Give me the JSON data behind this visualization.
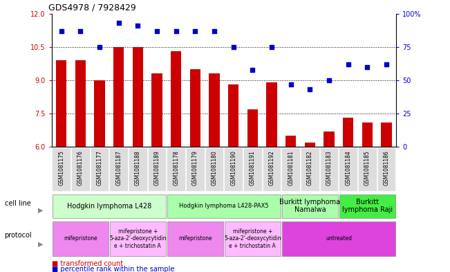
{
  "title": "GDS4978 / 7928429",
  "samples": [
    "GSM1081175",
    "GSM1081176",
    "GSM1081177",
    "GSM1081187",
    "GSM1081188",
    "GSM1081189",
    "GSM1081178",
    "GSM1081179",
    "GSM1081180",
    "GSM1081190",
    "GSM1081191",
    "GSM1081192",
    "GSM1081181",
    "GSM1081182",
    "GSM1081183",
    "GSM1081184",
    "GSM1081185",
    "GSM1081186"
  ],
  "bar_values": [
    9.9,
    9.9,
    9.0,
    10.5,
    10.5,
    9.3,
    10.3,
    9.5,
    9.3,
    8.8,
    7.7,
    8.9,
    6.5,
    6.2,
    6.7,
    7.3,
    7.1,
    7.1
  ],
  "dot_values": [
    87,
    87,
    75,
    93,
    91,
    87,
    87,
    87,
    87,
    75,
    58,
    75,
    47,
    43,
    50,
    62,
    60,
    62
  ],
  "ylim_left": [
    6,
    12
  ],
  "ylim_right": [
    0,
    100
  ],
  "yticks_left": [
    6,
    7.5,
    9,
    10.5,
    12
  ],
  "yticks_right": [
    0,
    25,
    50,
    75,
    100
  ],
  "bar_color": "#cc0000",
  "dot_color": "#0000cc",
  "bar_width": 0.55,
  "cell_line_groups": [
    {
      "label": "Hodgkin lymphoma L428",
      "start": 0,
      "end": 5,
      "color": "#ccffcc"
    },
    {
      "label": "Hodgkin lymphoma L428-PAX5",
      "start": 6,
      "end": 11,
      "color": "#aaffaa"
    },
    {
      "label": "Burkitt lymphoma\nNamalwa",
      "start": 12,
      "end": 14,
      "color": "#aaffaa"
    },
    {
      "label": "Burkitt\nlymphoma Raji",
      "start": 15,
      "end": 17,
      "color": "#44ee44"
    }
  ],
  "protocol_groups": [
    {
      "label": "mifepristone",
      "start": 0,
      "end": 2,
      "color": "#ee88ee"
    },
    {
      "label": "mifepristone +\n5-aza-2'-deoxycytidin\ne + trichostatin A",
      "start": 3,
      "end": 5,
      "color": "#ffbbff"
    },
    {
      "label": "mifepristone",
      "start": 6,
      "end": 8,
      "color": "#ee88ee"
    },
    {
      "label": "mifepristone +\n5-aza-2'-deoxycytidin\ne + trichostatin A",
      "start": 9,
      "end": 11,
      "color": "#ffbbff"
    },
    {
      "label": "untreated",
      "start": 12,
      "end": 17,
      "color": "#dd44dd"
    }
  ],
  "legend_red": "transformed count",
  "legend_blue": "percentile rank within the sample",
  "bg_color": "#ffffff",
  "tick_label_color": "#555555",
  "left_axis_color": "#cc0000",
  "right_axis_color": "#0000cc"
}
